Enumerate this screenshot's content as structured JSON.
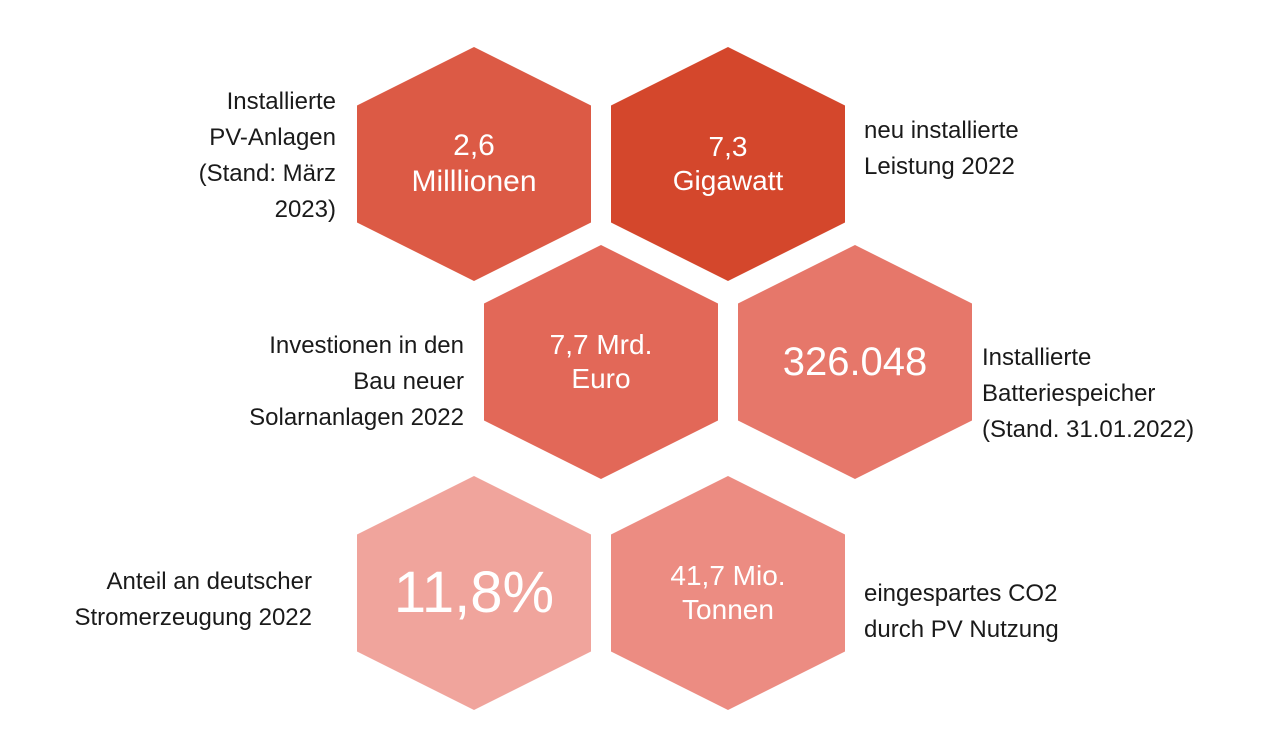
{
  "colors": {
    "pv_anlagen": "#dc5a45",
    "gigawatt": "#d4472c",
    "investitionen": "#e26858",
    "batteriespeicher": "#e6776a",
    "anteil": "#f0a49c",
    "co2": "#ec8c82"
  },
  "hexagons": {
    "pv_anlagen": {
      "line1": "2,6",
      "line2": "Milllionen"
    },
    "gigawatt": {
      "line1": "7,3",
      "line2": "Gigawatt"
    },
    "investitionen": {
      "line1": "7,7 Mrd.",
      "line2": "Euro"
    },
    "batteriespeicher": {
      "line1": "326.048"
    },
    "anteil": {
      "line1": "11,8%"
    },
    "co2": {
      "line1": "41,7 Mio.",
      "line2": "Tonnen"
    }
  },
  "labels": {
    "pv_anlagen": [
      "Installierte",
      "PV-Anlagen",
      "(Stand: März",
      "2023)"
    ],
    "gigawatt": [
      "neu installierte",
      "Leistung 2022"
    ],
    "investitionen": [
      "Investionen in den",
      "Bau neuer",
      "Solarnanlagen 2022"
    ],
    "batteriespeicher": [
      "Installierte",
      "Batteriespeicher",
      "(Stand. 31.01.2022)"
    ],
    "anteil": [
      "Anteil an deutscher",
      "Stromerzeugung 2022"
    ],
    "co2": [
      "eingespartes CO2",
      "durch PV Nutzung"
    ]
  }
}
